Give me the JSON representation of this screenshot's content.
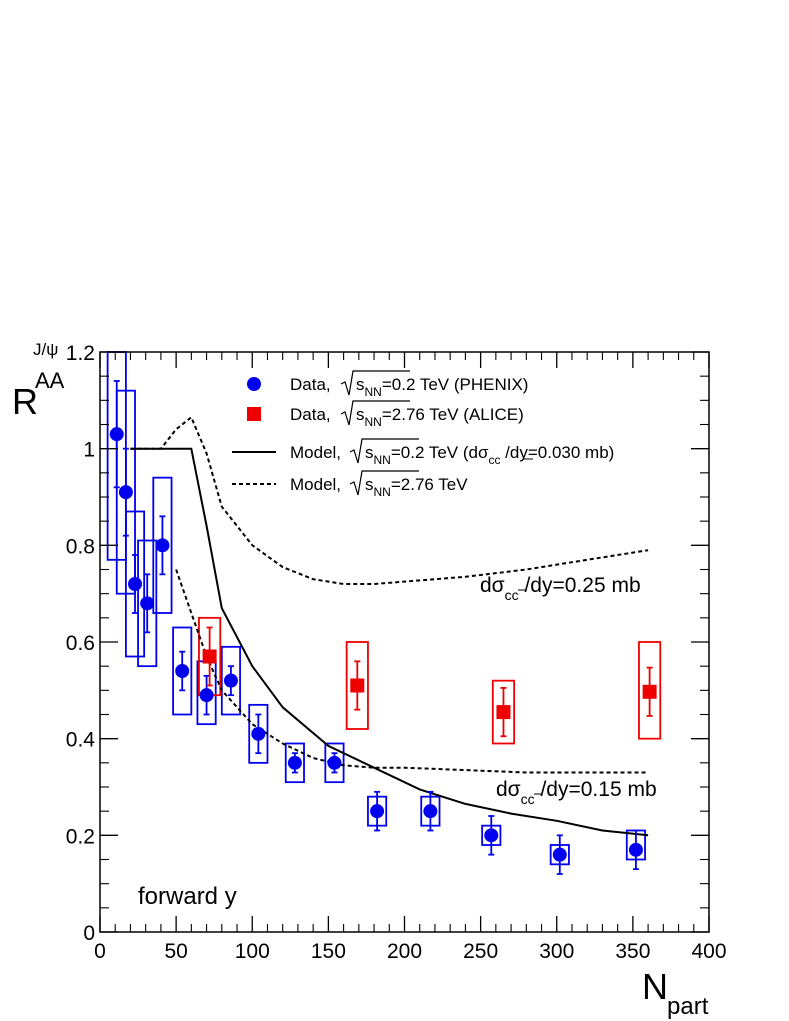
{
  "chart_data": {
    "type": "scatter",
    "ylabel_main": "R",
    "ylabel_sup": "J/ψ",
    "ylabel_sub": "AA",
    "xlabel_main": "N",
    "xlabel_sub": "part",
    "xlim": [
      0,
      400
    ],
    "ylim": [
      0,
      1.2
    ],
    "x_ticks": [
      "0",
      "50",
      "100",
      "150",
      "200",
      "250",
      "300",
      "350",
      "400"
    ],
    "y_ticks": [
      "0",
      "0.2",
      "0.4",
      "0.6",
      "0.8",
      "1",
      "1.2"
    ],
    "annotation": "forward y",
    "legend": {
      "position": "top-right",
      "entries": [
        {
          "prefix": "Data,",
          "sqrt": "s",
          "sub": "NN",
          "suffix": "=0.2 TeV (PHENIX)",
          "extra_sub": "",
          "tail": ""
        },
        {
          "prefix": "Data,",
          "sqrt": "s",
          "sub": "NN",
          "suffix": "=2.76 TeV (ALICE)",
          "extra_sub": "",
          "tail": ""
        },
        {
          "prefix": "Model,",
          "sqrt": "s",
          "sub": "NN",
          "suffix": "=0.2 TeV (dσ",
          "extra_sub": "cc",
          "tail": " /dy=0.030 mb)"
        },
        {
          "prefix": "Model,",
          "sqrt": "s",
          "sub": "NN",
          "suffix": "=2.76 TeV",
          "extra_sub": "",
          "tail": ""
        }
      ]
    },
    "curve_labels": [
      {
        "pre": "dσ",
        "sub": "cc",
        "post": " /dy=0.25 mb"
      },
      {
        "pre": "dσ",
        "sub": "cc",
        "post": " /dy=0.15 mb"
      }
    ],
    "series": [
      {
        "name": "Data, √sNN=0.2 TeV (PHENIX)",
        "color": "#0000ee",
        "marker": "circle",
        "points": [
          {
            "x": 11,
            "y": 1.03,
            "err": 0.11,
            "sys_lo": 0.77,
            "sys_hi": 1.2,
            "sys_w": 6
          },
          {
            "x": 17,
            "y": 0.91,
            "err": 0.09,
            "sys_lo": 0.7,
            "sys_hi": 1.12,
            "sys_w": 6
          },
          {
            "x": 23,
            "y": 0.72,
            "err": 0.06,
            "sys_lo": 0.57,
            "sys_hi": 0.87,
            "sys_w": 6
          },
          {
            "x": 31,
            "y": 0.68,
            "err": 0.06,
            "sys_lo": 0.55,
            "sys_hi": 0.81,
            "sys_w": 6
          },
          {
            "x": 41,
            "y": 0.8,
            "err": 0.06,
            "sys_lo": 0.66,
            "sys_hi": 0.94,
            "sys_w": 6
          },
          {
            "x": 54,
            "y": 0.54,
            "err": 0.04,
            "sys_lo": 0.45,
            "sys_hi": 0.63,
            "sys_w": 6
          },
          {
            "x": 70,
            "y": 0.49,
            "err": 0.04,
            "sys_lo": 0.43,
            "sys_hi": 0.56,
            "sys_w": 6
          },
          {
            "x": 86,
            "y": 0.52,
            "err": 0.03,
            "sys_lo": 0.45,
            "sys_hi": 0.59,
            "sys_w": 6
          },
          {
            "x": 104,
            "y": 0.41,
            "err": 0.04,
            "sys_lo": 0.35,
            "sys_hi": 0.47,
            "sys_w": 6
          },
          {
            "x": 128,
            "y": 0.35,
            "err": 0.02,
            "sys_lo": 0.31,
            "sys_hi": 0.39,
            "sys_w": 6
          },
          {
            "x": 154,
            "y": 0.35,
            "err": 0.02,
            "sys_lo": 0.31,
            "sys_hi": 0.39,
            "sys_w": 6
          },
          {
            "x": 182,
            "y": 0.25,
            "err": 0.04,
            "sys_lo": 0.22,
            "sys_hi": 0.28,
            "sys_w": 6
          },
          {
            "x": 217,
            "y": 0.25,
            "err": 0.04,
            "sys_lo": 0.22,
            "sys_hi": 0.28,
            "sys_w": 6
          },
          {
            "x": 257,
            "y": 0.2,
            "err": 0.04,
            "sys_lo": 0.18,
            "sys_hi": 0.22,
            "sys_w": 6
          },
          {
            "x": 302,
            "y": 0.16,
            "err": 0.04,
            "sys_lo": 0.14,
            "sys_hi": 0.18,
            "sys_w": 6
          },
          {
            "x": 352,
            "y": 0.17,
            "err": 0.04,
            "sys_lo": 0.15,
            "sys_hi": 0.21,
            "sys_w": 6
          }
        ]
      },
      {
        "name": "Data, √sNN=2.76 TeV (ALICE)",
        "color": "#ee0000",
        "marker": "square",
        "points": [
          {
            "x": 72,
            "y": 0.57,
            "err": 0.06,
            "sys_lo": 0.49,
            "sys_hi": 0.65,
            "sys_w": 7
          },
          {
            "x": 169,
            "y": 0.51,
            "err": 0.05,
            "sys_lo": 0.42,
            "sys_hi": 0.6,
            "sys_w": 7
          },
          {
            "x": 265,
            "y": 0.455,
            "err": 0.05,
            "sys_lo": 0.39,
            "sys_hi": 0.52,
            "sys_w": 7
          },
          {
            "x": 361,
            "y": 0.497,
            "err": 0.05,
            "sys_lo": 0.4,
            "sys_hi": 0.6,
            "sys_w": 7
          }
        ]
      }
    ],
    "model_curves": [
      {
        "name": "Model, √sNN=0.2 TeV",
        "style": "solid",
        "x": [
          20,
          30,
          40,
          50,
          60,
          70,
          80,
          100,
          120,
          150,
          180,
          210,
          240,
          270,
          300,
          330,
          360
        ],
        "y": [
          1.0,
          1.0,
          1.0,
          1.0,
          1.0,
          0.84,
          0.67,
          0.55,
          0.465,
          0.385,
          0.34,
          0.295,
          0.265,
          0.245,
          0.23,
          0.21,
          0.2
        ]
      },
      {
        "name": "Model, √sNN=2.76 TeV, dσcc/dy=0.25 mb",
        "style": "dashed",
        "x": [
          20,
          30,
          40,
          50,
          60,
          70,
          80,
          100,
          120,
          140,
          160,
          180,
          200,
          240,
          280,
          320,
          360
        ],
        "y": [
          1.0,
          1.0,
          1.0,
          1.04,
          1.065,
          0.99,
          0.88,
          0.8,
          0.755,
          0.73,
          0.72,
          0.72,
          0.725,
          0.735,
          0.75,
          0.77,
          0.79
        ]
      },
      {
        "name": "Model, √sNN=2.76 TeV, dσcc/dy=0.15 mb",
        "style": "dashed",
        "x": [
          50,
          60,
          70,
          80,
          100,
          120,
          140,
          160,
          180,
          200,
          240,
          280,
          320,
          360
        ],
        "y": [
          0.75,
          0.66,
          0.57,
          0.5,
          0.43,
          0.39,
          0.36,
          0.345,
          0.34,
          0.34,
          0.335,
          0.33,
          0.33,
          0.33
        ]
      }
    ]
  }
}
